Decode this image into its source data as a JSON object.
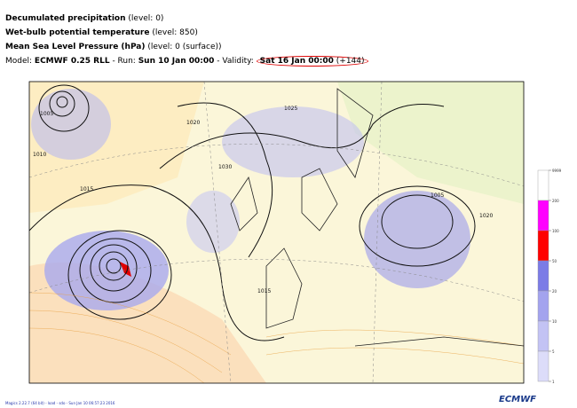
{
  "header": {
    "lines": [
      [
        {
          "text": "Decumulated precipitation",
          "bold": true
        },
        {
          "text": " (level: 0)",
          "bold": false
        }
      ],
      [
        {
          "text": "Wet-bulb potential temperature",
          "bold": true
        },
        {
          "text": " (level: 850)",
          "bold": false
        }
      ],
      [
        {
          "text": "Mean Sea Level Pressure (hPa)",
          "bold": true
        },
        {
          "text": " (level: 0 (surface))",
          "bold": false
        }
      ],
      [
        {
          "text": "Model: ",
          "bold": false
        },
        {
          "text": "ECMWF 0.25 RLL",
          "bold": true
        },
        {
          "text": " - Run: ",
          "bold": false
        },
        {
          "text": "Sun 10 Jan 00:00",
          "bold": true
        },
        {
          "text": " - Validity: ",
          "bold": false
        },
        {
          "text": "Sat 16 Jan 00:00",
          "bold": true,
          "circled": true
        },
        {
          "text": " (+144)",
          "bold": false,
          "circled": true
        }
      ]
    ]
  },
  "contour_labels": [
    "1025",
    "1005",
    "1010",
    "1015",
    "1020",
    "1030",
    "1005",
    "1015",
    "1020"
  ],
  "colorbar": {
    "levels": [
      9999,
      200,
      100,
      50,
      20,
      10,
      5,
      1
    ],
    "colors": [
      "#ffffff",
      "#ff00ff",
      "#ff0000",
      "#7b7be6",
      "#a3a3ee",
      "#c3c3f4",
      "#dcdcf9"
    ]
  },
  "footer": "Magics 2.22.7 (64 bit) - load - sdo - Sun Jan 10 06:57:23 2016",
  "logo": "ECMWF"
}
